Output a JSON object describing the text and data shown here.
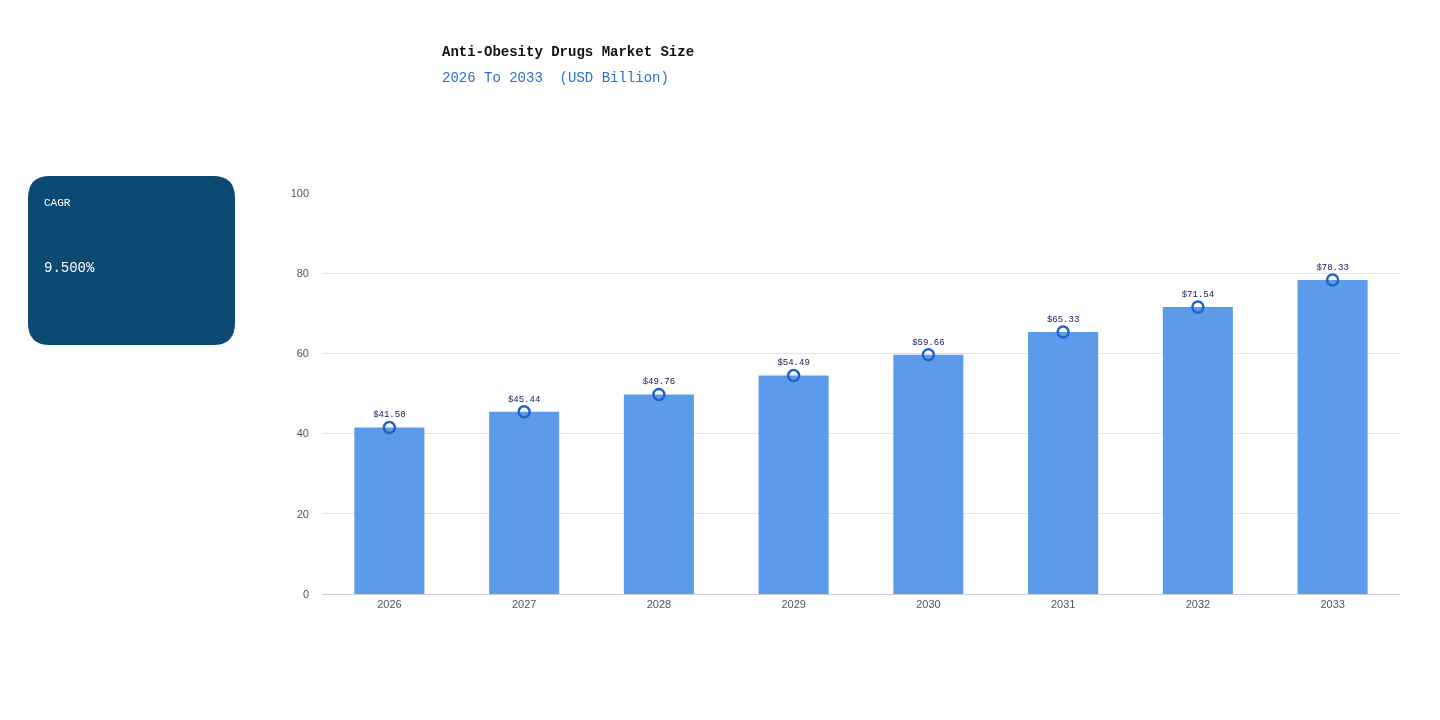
{
  "chart_data": {
    "type": "bar",
    "title": "Anti-Obesity Drugs Market Size",
    "subtitle": "2026 To 2033  (USD Billion)",
    "categories": [
      "2026",
      "2027",
      "2028",
      "2029",
      "2030",
      "2031",
      "2032",
      "2033"
    ],
    "series": [
      {
        "color": "#5b9be9",
        "values": [
          41.5,
          45.44,
          49.76,
          54.49,
          59.66,
          65.33,
          71.54,
          78.33
        ]
      },
      {
        "type": "scatter",
        "color": "#1f63c9",
        "values": [
          41.5,
          45.44,
          49.76,
          54.49,
          59.66,
          65.33,
          71.54,
          78.33
        ],
        "value_labels": [
          "$41.50",
          "$45.44",
          "$49.76",
          "$54.49",
          "$59.66",
          "$65.33",
          "$71.54",
          "$78.33"
        ]
      }
    ],
    "ylim": [
      0,
      100
    ],
    "yticks": [
      0,
      20,
      40,
      60,
      80,
      100
    ],
    "grid": "y",
    "marker": "circle",
    "annotations": [
      "CAGR",
      "9.500%"
    ]
  }
}
